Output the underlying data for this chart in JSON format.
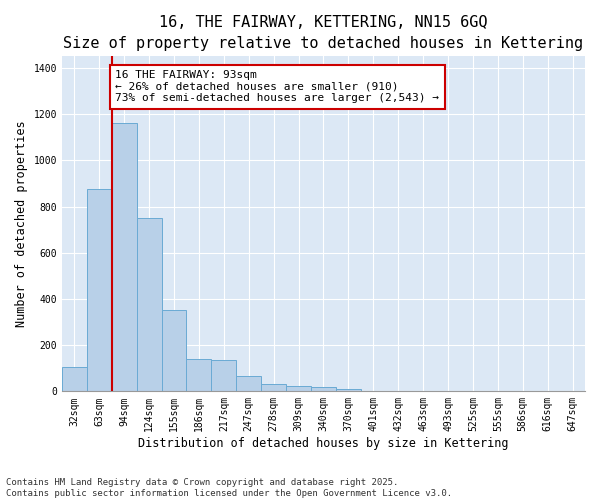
{
  "title_line1": "16, THE FAIRWAY, KETTERING, NN15 6GQ",
  "title_line2": "Size of property relative to detached houses in Kettering",
  "xlabel": "Distribution of detached houses by size in Kettering",
  "ylabel": "Number of detached properties",
  "categories": [
    "32sqm",
    "63sqm",
    "94sqm",
    "124sqm",
    "155sqm",
    "186sqm",
    "217sqm",
    "247sqm",
    "278sqm",
    "309sqm",
    "340sqm",
    "370sqm",
    "401sqm",
    "432sqm",
    "463sqm",
    "493sqm",
    "525sqm",
    "555sqm",
    "586sqm",
    "616sqm",
    "647sqm"
  ],
  "values": [
    105,
    875,
    1160,
    750,
    350,
    140,
    135,
    67,
    30,
    25,
    18,
    12,
    0,
    0,
    0,
    0,
    0,
    0,
    0,
    0,
    0
  ],
  "bar_color": "#b8d0e8",
  "bar_edge_color": "#6aaad4",
  "vline_x_index": 2,
  "vline_color": "#cc0000",
  "annotation_text": "16 THE FAIRWAY: 93sqm\n← 26% of detached houses are smaller (910)\n73% of semi-detached houses are larger (2,543) →",
  "annotation_box_color": "#cc0000",
  "annotation_text_color": "#000000",
  "ylim": [
    0,
    1450
  ],
  "yticks": [
    0,
    200,
    400,
    600,
    800,
    1000,
    1200,
    1400
  ],
  "plot_bg_color": "#dce8f5",
  "fig_bg_color": "#ffffff",
  "footer_line1": "Contains HM Land Registry data © Crown copyright and database right 2025.",
  "footer_line2": "Contains public sector information licensed under the Open Government Licence v3.0.",
  "title_fontsize": 11,
  "subtitle_fontsize": 9,
  "axis_label_fontsize": 8.5,
  "tick_fontsize": 7,
  "annotation_fontsize": 8,
  "footer_fontsize": 6.5
}
